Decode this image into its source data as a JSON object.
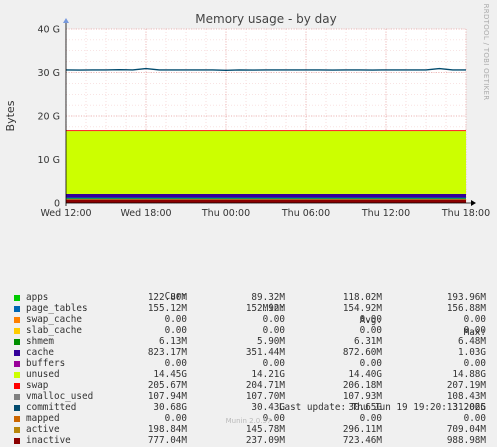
{
  "chart_data": {
    "type": "area",
    "title": "Memory usage - by day",
    "ylabel": "Bytes",
    "watermark": "RRDTOOL / TOBI OETIKER",
    "ylim": [
      0,
      40
    ],
    "yunit": "G",
    "yticks": [
      "0",
      "10 G",
      "20 G",
      "30 G",
      "40 G"
    ],
    "ytick_values": [
      0,
      10,
      20,
      30,
      40
    ],
    "xrange": [
      0,
      30
    ],
    "xticks": [
      "Wed 12:00",
      "Wed 18:00",
      "Thu 00:00",
      "Thu 06:00",
      "Thu 12:00",
      "Thu 18:00"
    ],
    "xtick_values": [
      0,
      6,
      12,
      18,
      24,
      30
    ],
    "x_axis_note": "x values are hours since Wed 12:00",
    "grid": true,
    "stacked_layers": [
      {
        "name": "inactive",
        "color": "#8b0000",
        "value": 0.78
      },
      {
        "name": "active",
        "color": "#b8860b",
        "value": 0.2
      },
      {
        "name": "apps",
        "color": "#00aa00",
        "value": 0.12
      },
      {
        "name": "page_tables",
        "color": "#0066b3",
        "value": 0.16
      },
      {
        "name": "cache",
        "color": "#330099",
        "value": 0.82
      },
      {
        "name": "unused",
        "color": "#ccff00",
        "value": 14.45
      },
      {
        "name": "swap",
        "color": "#ff0000",
        "value": 0.21
      }
    ],
    "committed_line": {
      "name": "committed",
      "color": "#024b6e",
      "x": [
        0,
        1,
        2,
        3,
        4,
        5,
        6,
        7,
        8,
        9,
        10,
        11,
        12,
        13,
        14,
        15,
        16,
        17,
        18,
        19,
        20,
        21,
        22,
        23,
        24,
        25,
        26,
        27,
        28,
        29,
        30
      ],
      "y": [
        30.6,
        30.55,
        30.6,
        30.6,
        30.65,
        30.6,
        30.9,
        30.6,
        30.6,
        30.6,
        30.6,
        30.6,
        30.5,
        30.6,
        30.55,
        30.6,
        30.6,
        30.6,
        30.6,
        30.6,
        30.55,
        30.6,
        30.6,
        30.55,
        30.6,
        30.6,
        30.6,
        30.6,
        30.9,
        30.6,
        30.6
      ]
    }
  },
  "legend": {
    "headers": {
      "cur": "Cur:",
      "min": "Min:",
      "avg": "Avg:",
      "max": "Max:"
    },
    "rows": [
      {
        "name": "apps",
        "color": "#00cc00",
        "cur": "122.80M",
        "min": "89.32M",
        "avg": "118.02M",
        "max": "193.96M"
      },
      {
        "name": "page_tables",
        "color": "#0066b3",
        "cur": "155.12M",
        "min": "152.92M",
        "avg": "154.92M",
        "max": "156.88M"
      },
      {
        "name": "swap_cache",
        "color": "#ff8000",
        "cur": "0.00",
        "min": "0.00",
        "avg": "0.00",
        "max": "0.00"
      },
      {
        "name": "slab_cache",
        "color": "#ffcc00",
        "cur": "0.00",
        "min": "0.00",
        "avg": "0.00",
        "max": "0.00"
      },
      {
        "name": "shmem",
        "color": "#008f00",
        "cur": "6.13M",
        "min": "5.90M",
        "avg": "6.31M",
        "max": "6.48M"
      },
      {
        "name": "cache",
        "color": "#330099",
        "cur": "823.17M",
        "min": "351.44M",
        "avg": "872.60M",
        "max": "1.03G"
      },
      {
        "name": "buffers",
        "color": "#990099",
        "cur": "0.00",
        "min": "0.00",
        "avg": "0.00",
        "max": "0.00"
      },
      {
        "name": "unused",
        "color": "#ccff00",
        "cur": "14.45G",
        "min": "14.21G",
        "avg": "14.40G",
        "max": "14.88G"
      },
      {
        "name": "swap",
        "color": "#ff0000",
        "cur": "205.67M",
        "min": "204.71M",
        "avg": "206.18M",
        "max": "207.19M"
      },
      {
        "name": "vmalloc_used",
        "color": "#808080",
        "cur": "107.94M",
        "min": "107.70M",
        "avg": "107.93M",
        "max": "108.43M"
      },
      {
        "name": "committed",
        "color": "#024b6e",
        "cur": "30.68G",
        "min": "30.43G",
        "avg": "30.65G",
        "max": "31.06G"
      },
      {
        "name": "mapped",
        "color": "#cc6600",
        "cur": "0.00",
        "min": "0.00",
        "avg": "0.00",
        "max": "0.00"
      },
      {
        "name": "active",
        "color": "#b8860b",
        "cur": "198.84M",
        "min": "145.78M",
        "avg": "296.11M",
        "max": "709.04M"
      },
      {
        "name": "inactive",
        "color": "#8b0000",
        "cur": "777.04M",
        "min": "237.09M",
        "avg": "723.46M",
        "max": "988.98M"
      }
    ]
  },
  "footer": {
    "last_update": "Last update: Thu Jun 19 19:20:13 2025",
    "version": "Munin 2.0.57"
  }
}
